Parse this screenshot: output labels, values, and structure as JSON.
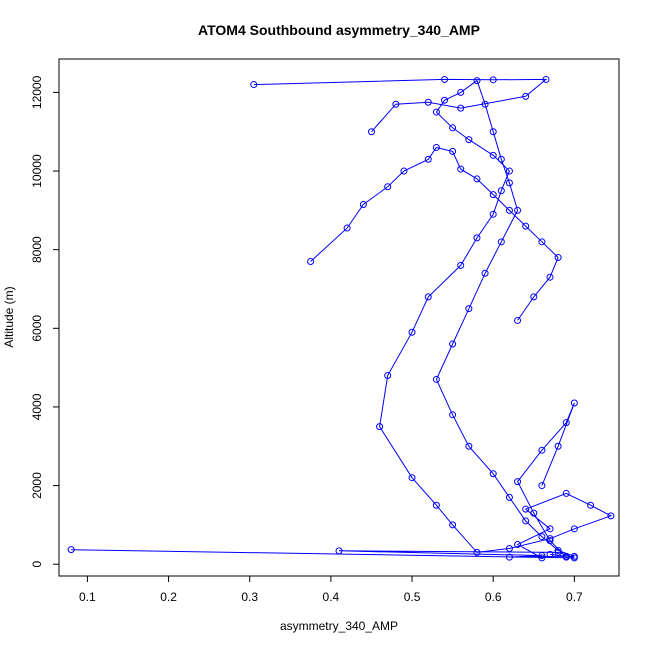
{
  "chart_data": {
    "type": "line",
    "title": "ATOM4 Southbound asymmetry_340_AMP",
    "xlabel": "asymmetry_340_AMP",
    "ylabel": "Altitude (m)",
    "xlim": [
      0.065,
      0.755
    ],
    "ylim": [
      -300,
      12850
    ],
    "xticks": [
      0.1,
      0.2,
      0.3,
      0.4,
      0.5,
      0.6,
      0.7
    ],
    "xtick_labels": [
      "0.1",
      "0.2",
      "0.3",
      "0.4",
      "0.5",
      "0.6",
      "0.7"
    ],
    "yticks": [
      0,
      2000,
      4000,
      6000,
      8000,
      10000,
      12000
    ],
    "ytick_labels": [
      "0",
      "2000",
      "4000",
      "6000",
      "8000",
      "10000",
      "12000"
    ],
    "grid": false,
    "series_color": "#0000ff",
    "series": [
      {
        "x": [
          0.66,
          0.63,
          0.67,
          0.64,
          0.69,
          0.72,
          0.745,
          0.7,
          0.67,
          0.62,
          0.58,
          0.55,
          0.53,
          0.5,
          0.46,
          0.47,
          0.5,
          0.52,
          0.56,
          0.58,
          0.6,
          0.61,
          0.62,
          0.6,
          0.57,
          0.55,
          0.53,
          0.54,
          0.56,
          0.58,
          0.59,
          0.6,
          0.61,
          0.62,
          0.63,
          0.61,
          0.59,
          0.57,
          0.55,
          0.53,
          0.55,
          0.57,
          0.6,
          0.62,
          0.64,
          0.66,
          0.68,
          0.7,
          0.69,
          0.67,
          0.65,
          0.63,
          0.66,
          0.69,
          0.7,
          0.68,
          0.66
        ],
        "y": [
          160,
          500,
          900,
          1400,
          1800,
          1500,
          1230,
          900,
          650,
          400,
          300,
          1000,
          1500,
          2200,
          3500,
          4800,
          5900,
          6800,
          7600,
          8300,
          8900,
          9500,
          10000,
          10400,
          10800,
          11100,
          11500,
          11800,
          12000,
          12300,
          11700,
          11000,
          10300,
          9700,
          9000,
          8200,
          7400,
          6500,
          5600,
          4700,
          3800,
          3000,
          2300,
          1700,
          1100,
          700,
          350,
          200,
          180,
          600,
          1300,
          2100,
          2900,
          3600,
          4100,
          3000,
          2000
        ]
      },
      {
        "x": [
          0.08,
          0.7,
          0.68,
          0.41,
          0.66,
          0.62,
          0.69,
          0.67
        ],
        "y": [
          370,
          160,
          300,
          340,
          220,
          180,
          200,
          250
        ]
      },
      {
        "x": [
          0.305,
          0.54,
          0.6,
          0.665,
          0.64,
          0.56,
          0.52,
          0.48,
          0.45
        ],
        "y": [
          12200,
          12330,
          12320,
          12330,
          11900,
          11600,
          11750,
          11700,
          11000
        ]
      },
      {
        "x": [
          0.375,
          0.42,
          0.44,
          0.47,
          0.49,
          0.52,
          0.53,
          0.55,
          0.56,
          0.58,
          0.6,
          0.62,
          0.64,
          0.66,
          0.68,
          0.67,
          0.65,
          0.63
        ],
        "y": [
          7700,
          8550,
          9150,
          9600,
          10000,
          10300,
          10600,
          10500,
          10050,
          9800,
          9400,
          9000,
          8600,
          8200,
          7800,
          7300,
          6800,
          6200
        ]
      }
    ]
  }
}
